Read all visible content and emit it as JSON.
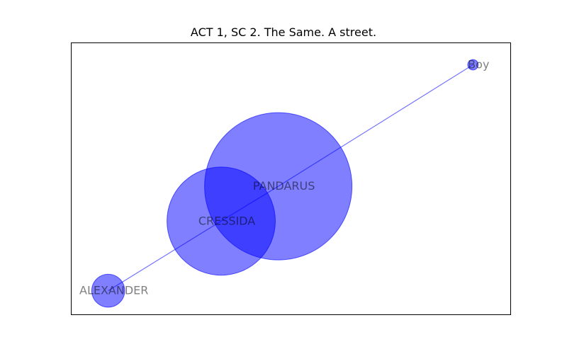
{
  "title": "ACT 1, SC 2. The Same. A street.",
  "colors": {
    "node_fill": "#0000ff",
    "edge": "#0000ff",
    "label": "#000000",
    "frame": "#000000"
  },
  "chart_data": {
    "type": "network",
    "title": "ACT 1, SC 2. The Same. A street.",
    "xlim": [
      0,
      1
    ],
    "ylim": [
      0,
      1
    ],
    "nodes": [
      {
        "id": "boy",
        "label": "Boy",
        "x": 0.915,
        "y": 0.918,
        "size": 0.005
      },
      {
        "id": "pandarus",
        "label": "PANDARUS",
        "x": 0.472,
        "y": 0.471,
        "size": 1.0
      },
      {
        "id": "cressida",
        "label": "CRESSIDA",
        "x": 0.342,
        "y": 0.343,
        "size": 0.54
      },
      {
        "id": "alexander",
        "label": "ALEXANDER",
        "x": 0.085,
        "y": 0.087,
        "size": 0.05
      }
    ],
    "edges": [
      {
        "source": "alexander",
        "target": "cressida"
      },
      {
        "source": "cressida",
        "target": "pandarus"
      },
      {
        "source": "pandarus",
        "target": "boy"
      }
    ]
  }
}
